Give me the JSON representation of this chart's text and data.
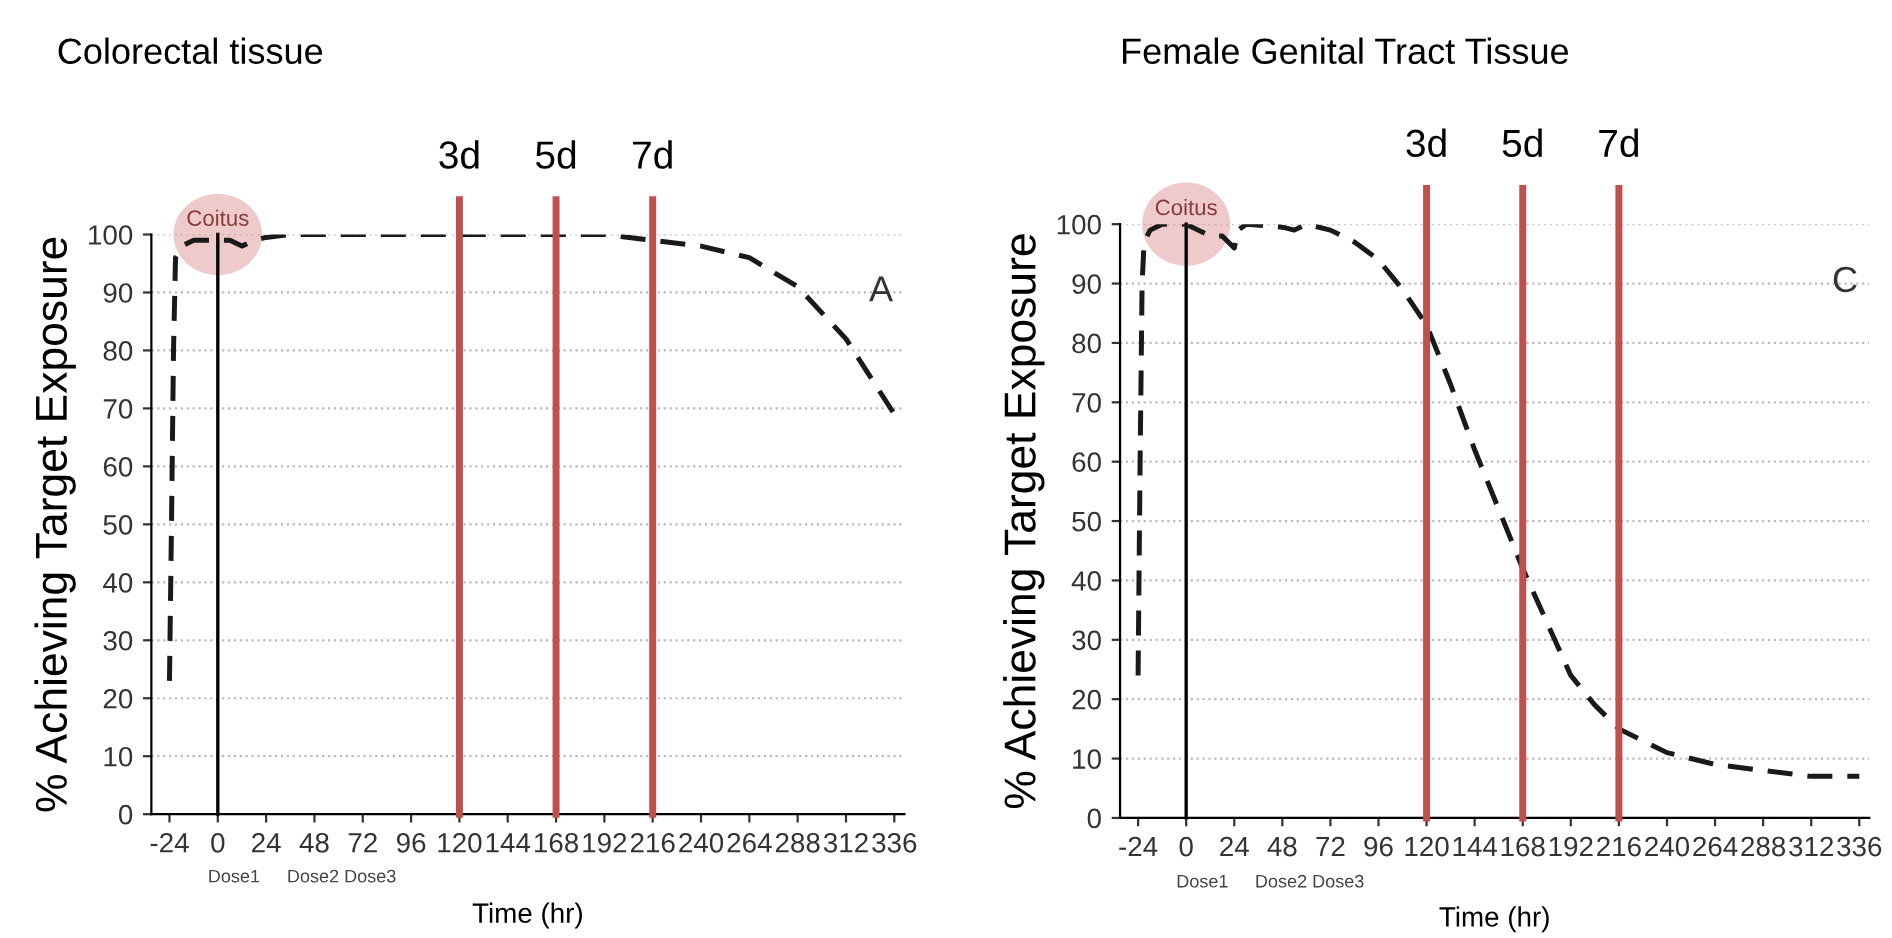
{
  "chart_data": [
    {
      "type": "line",
      "title": "Colorectal tissue",
      "xlabel": "Time (hr)",
      "ylabel": "% Achieving Target Exposure",
      "series": [
        {
          "color": "#1a1a1a",
          "x": [
            -24,
            -23,
            -22,
            -21,
            -18,
            -12,
            0,
            6,
            12,
            18,
            24,
            36,
            96,
            192,
            216,
            240,
            264,
            288,
            312,
            336
          ],
          "values": [
            23,
            50,
            80,
            96,
            98,
            99,
            99,
            99,
            98,
            99,
            99.5,
            100,
            100,
            100,
            99,
            98,
            96,
            91,
            82,
            69
          ]
        }
      ],
      "xlim": [
        -33,
        341
      ],
      "xticks": [
        -24,
        0,
        24,
        48,
        72,
        96,
        120,
        144,
        168,
        192,
        216,
        240,
        264,
        288,
        312,
        336
      ],
      "ylim": [
        0,
        100
      ],
      "yticks": [
        0,
        10,
        20,
        30,
        40,
        50,
        60,
        70,
        80,
        90,
        100
      ],
      "grid": "y",
      "line_style": "dashed",
      "ref_lines": [
        {
          "axis": "x",
          "value": 0,
          "color": "#000000"
        },
        {
          "axis": "x",
          "value": 120,
          "label": "3d",
          "color": "#c0504d"
        },
        {
          "axis": "x",
          "value": 168,
          "label": "5d",
          "color": "#c0504d"
        },
        {
          "axis": "x",
          "value": 216,
          "label": "7d",
          "color": "#c0504d"
        }
      ],
      "annotations": [
        "A",
        {
          "text": "Coitus",
          "x": 0,
          "y": 100
        },
        "Dose1",
        "Dose2 Dose3"
      ]
    },
    {
      "type": "line",
      "title": "Female Genital Tract Tissue",
      "xlabel": "Time (hr)",
      "ylabel": "% Achieving Target Exposure",
      "series": [
        {
          "color": "#1a1a1a",
          "x": [
            -24,
            -23,
            -22,
            -21,
            -18,
            -12,
            0,
            6,
            12,
            18,
            24,
            26,
            30,
            48,
            54,
            60,
            72,
            84,
            96,
            108,
            120,
            132,
            144,
            156,
            168,
            180,
            192,
            204,
            216,
            240,
            264,
            288,
            312,
            336
          ],
          "values": [
            24,
            60,
            90,
            97,
            99,
            100,
            100,
            99,
            98,
            98,
            96,
            99,
            100,
            99.5,
            99,
            100,
            99,
            97,
            94,
            89,
            83,
            73,
            62,
            52,
            42,
            33,
            24,
            19,
            15,
            11,
            9,
            8,
            7,
            7
          ]
        }
      ],
      "xlim": [
        -33,
        341
      ],
      "xticks": [
        -24,
        0,
        24,
        48,
        72,
        96,
        120,
        144,
        168,
        192,
        216,
        240,
        264,
        288,
        312,
        336
      ],
      "ylim": [
        0,
        100
      ],
      "yticks": [
        0,
        10,
        20,
        30,
        40,
        50,
        60,
        70,
        80,
        90,
        100
      ],
      "grid": "y",
      "line_style": "dashed",
      "ref_lines": [
        {
          "axis": "x",
          "value": 0,
          "color": "#000000"
        },
        {
          "axis": "x",
          "value": 120,
          "label": "3d",
          "color": "#c0504d"
        },
        {
          "axis": "x",
          "value": 168,
          "label": "5d",
          "color": "#c0504d"
        },
        {
          "axis": "x",
          "value": 216,
          "label": "7d",
          "color": "#c0504d"
        }
      ],
      "annotations": [
        "C",
        {
          "text": "Coitus",
          "x": 0,
          "y": 100
        },
        "Dose1",
        "Dose2 Dose3"
      ]
    }
  ]
}
